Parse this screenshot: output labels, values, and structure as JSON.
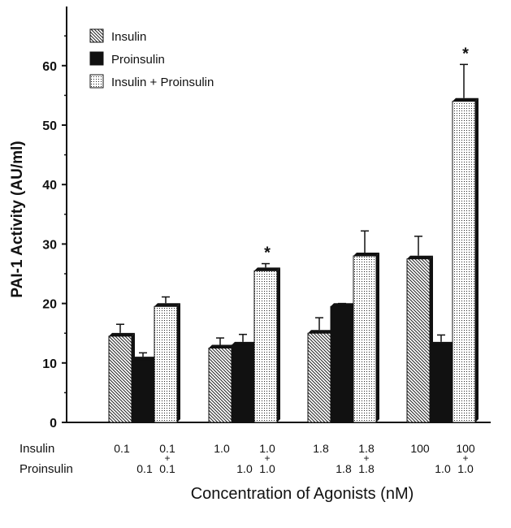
{
  "chart_data": {
    "type": "bar",
    "xlabel": "Concentration of Agonists (nM)",
    "ylabel": "PAI-1 Activity (AU/ml)",
    "ylim": [
      0,
      70
    ],
    "yticks": [
      0,
      10,
      20,
      30,
      40,
      50,
      60
    ],
    "legend": {
      "placement": "top-left",
      "entries": [
        {
          "label": "Insulin",
          "pattern": "diagonal-hatch"
        },
        {
          "label": "Proinsulin",
          "pattern": "solid-black"
        },
        {
          "label": "Insulin + Proinsulin",
          "pattern": "dotted"
        }
      ]
    },
    "groups": [
      {
        "bars": [
          {
            "series": "Insulin",
            "value": 14.5,
            "error": 2.0,
            "star": false
          },
          {
            "series": "Proinsulin",
            "value": 10.5,
            "error": 1.2,
            "star": false
          },
          {
            "series": "Insulin + Proinsulin",
            "value": 19.5,
            "error": 1.6,
            "star": false
          }
        ],
        "insulin_labels": [
          "0.1",
          "",
          "0.1"
        ],
        "proinsulin_labels": [
          "",
          "0.1",
          "0.1"
        ],
        "plus": [
          false,
          false,
          true
        ]
      },
      {
        "bars": [
          {
            "series": "Insulin",
            "value": 12.5,
            "error": 1.7,
            "star": false
          },
          {
            "series": "Proinsulin",
            "value": 13.0,
            "error": 1.8,
            "star": false
          },
          {
            "series": "Insulin + Proinsulin",
            "value": 25.5,
            "error": 1.2,
            "star": true
          }
        ],
        "insulin_labels": [
          "1.0",
          "",
          "1.0"
        ],
        "proinsulin_labels": [
          "",
          "1.0",
          "1.0"
        ],
        "plus": [
          false,
          false,
          true
        ]
      },
      {
        "bars": [
          {
            "series": "Insulin",
            "value": 15.0,
            "error": 2.6,
            "star": false
          },
          {
            "series": "Proinsulin",
            "value": 19.5,
            "error": 0.5,
            "star": false
          },
          {
            "series": "Insulin + Proinsulin",
            "value": 28.0,
            "error": 4.2,
            "star": false
          }
        ],
        "insulin_labels": [
          "1.8",
          "",
          "1.8"
        ],
        "proinsulin_labels": [
          "",
          "1.8",
          "1.8"
        ],
        "plus": [
          false,
          false,
          true
        ]
      },
      {
        "bars": [
          {
            "series": "Insulin",
            "value": 27.5,
            "error": 3.8,
            "star": false
          },
          {
            "series": "Proinsulin",
            "value": 13.0,
            "error": 1.7,
            "star": false
          },
          {
            "series": "Insulin + Proinsulin",
            "value": 54.0,
            "error": 6.2,
            "star": true
          }
        ],
        "insulin_labels": [
          "100",
          "",
          "100"
        ],
        "proinsulin_labels": [
          "",
          "1.0",
          "1.0"
        ],
        "plus": [
          false,
          false,
          true
        ]
      }
    ],
    "row_labels": {
      "insulin": "Insulin",
      "proinsulin": "Proinsulin"
    },
    "plus_sign": "+",
    "significance_marker": "*"
  }
}
